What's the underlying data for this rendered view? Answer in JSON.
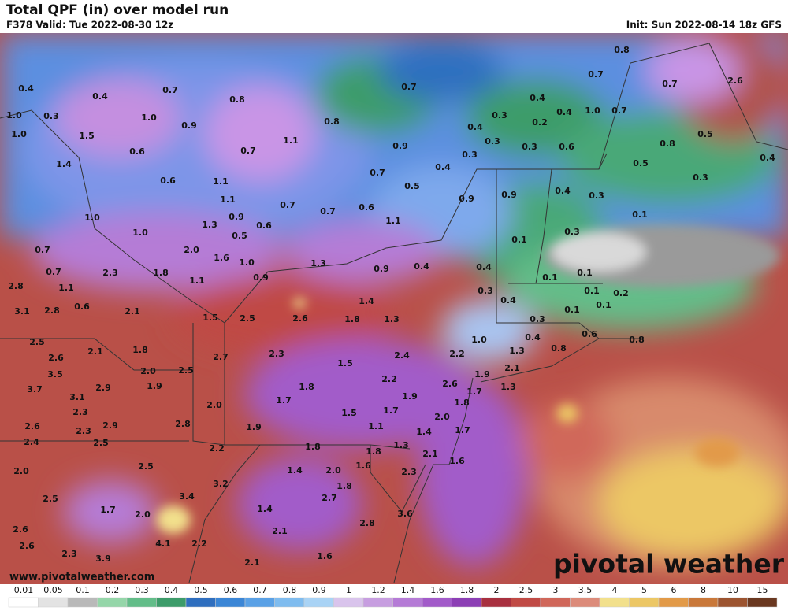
{
  "header": {
    "title": "Total QPF (in) over model run",
    "valid": "F378 Valid: Tue 2022-08-30 12z",
    "init": "Init: Sun 2022-08-14 18z GFS"
  },
  "watermark": {
    "url": "www.pivotalweather.com",
    "logo": "pivotal weather"
  },
  "legend": {
    "labels": [
      "0.01",
      "0.05",
      "0.1",
      "0.2",
      "0.3",
      "0.4",
      "0.5",
      "0.6",
      "0.7",
      "0.8",
      "0.9",
      "1",
      "1.2",
      "1.4",
      "1.6",
      "1.8",
      "2",
      "2.5",
      "3",
      "3.5",
      "4",
      "5",
      "6",
      "8",
      "10",
      "15"
    ],
    "colors": [
      "#ffffff",
      "#e3e3e3",
      "#b9b9b9",
      "#95d6a9",
      "#63bd89",
      "#3d9c6a",
      "#2f6fbf",
      "#3b86d6",
      "#5aa1e6",
      "#7fbcef",
      "#a9d3f5",
      "#d9c4ec",
      "#c79ee0",
      "#b57bd6",
      "#a25bc9",
      "#8c3fb5",
      "#a8303f",
      "#c04a45",
      "#d0675a",
      "#dc8b7a",
      "#f2e08c",
      "#ecc765",
      "#e29a48",
      "#c9783a",
      "#9c5430",
      "#6a3820"
    ]
  },
  "map_labels": [
    "0.4",
    "0.4",
    "0.7",
    "0.8",
    "0.7",
    "0.8",
    "0.7",
    "2.6",
    "0.7",
    "0.4",
    "0.3",
    "0.2",
    "0.4",
    "1.0",
    "0.7",
    "1.0",
    "0.3",
    "1.0",
    "0.9",
    "0.8",
    "0.4",
    "1.0",
    "1.5",
    "1.1",
    "0.3",
    "0.3",
    "0.6",
    "0.8",
    "0.5",
    "0.9",
    "0.6",
    "0.7",
    "0.3",
    "0.4",
    "0.5",
    "0.4",
    "1.4",
    "0.6",
    "1.1",
    "0.7",
    "0.5",
    "0.3",
    "0.9",
    "0.4",
    "0.3",
    "1.1",
    "0.9",
    "0.7",
    "0.7",
    "0.6",
    "1.1",
    "0.1",
    "0.9",
    "1.0",
    "1.3",
    "0.6",
    "1.0",
    "0.5",
    "0.3",
    "0.1",
    "0.7",
    "2.0",
    "1.6",
    "1.0",
    "1.3",
    "0.7",
    "2.3",
    "1.8",
    "0.9",
    "0.4",
    "0.4",
    "0.1",
    "0.1",
    "0.9",
    "1.1",
    "2.8",
    "1.1",
    "0.3",
    "0.4",
    "0.1",
    "0.2",
    "0.1",
    "1.4",
    "0.6",
    "3.1",
    "2.8",
    "2.1",
    "1.5",
    "2.5",
    "2.6",
    "1.8",
    "1.3",
    "0.3",
    "0.1",
    "0.4",
    "0.6",
    "0.8",
    "2.5",
    "1.0",
    "2.2",
    "1.3",
    "0.8",
    "2.1",
    "1.8",
    "2.6",
    "2.7",
    "2.3",
    "2.4",
    "3.5",
    "2.0",
    "2.5",
    "1.5",
    "1.9",
    "2.1",
    "2.2",
    "3.7",
    "2.9",
    "3.1",
    "1.9",
    "1.8",
    "2.6",
    "1.9",
    "1.7",
    "1.3",
    "1.7",
    "2.3",
    "2.0",
    "1.8",
    "1.5",
    "1.7",
    "2.0",
    "2.6",
    "2.3",
    "2.9",
    "2.8",
    "1.9",
    "1.1",
    "1.4",
    "1.7",
    "2.4",
    "2.5",
    "2.2",
    "1.8",
    "1.8",
    "1.3",
    "2.1",
    "1.6",
    "2.0",
    "2.5",
    "1.4",
    "2.0",
    "1.6",
    "2.3",
    "3.2",
    "1.8",
    "2.5",
    "3.4",
    "2.7",
    "1.7",
    "2.0",
    "1.4",
    "3.6",
    "2.6",
    "2.8",
    "2.1",
    "2.6",
    "4.1",
    "2.2",
    "2.3",
    "3.9",
    "1.6",
    "2.1"
  ]
}
